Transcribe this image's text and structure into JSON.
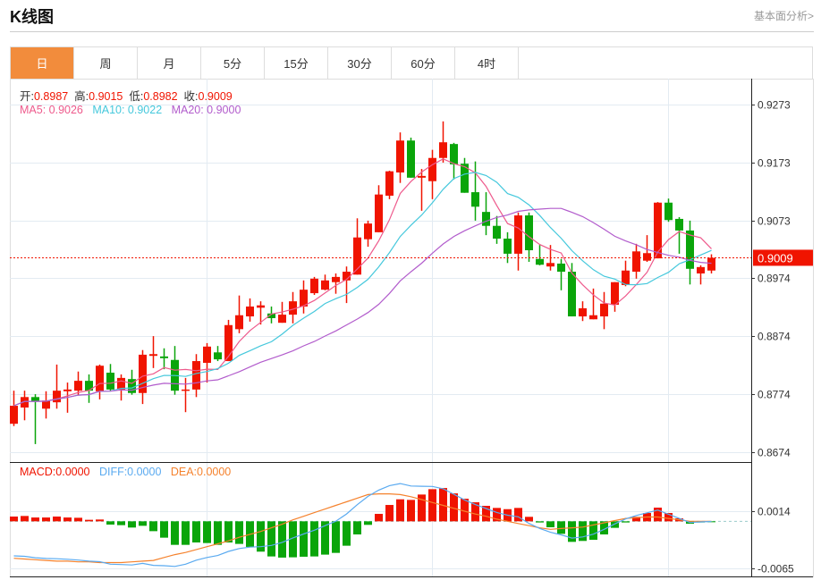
{
  "header": {
    "title": "K线图",
    "link": "基本面分析>"
  },
  "tabs": [
    {
      "label": "日",
      "active": true
    },
    {
      "label": "周"
    },
    {
      "label": "月"
    },
    {
      "label": "5分"
    },
    {
      "label": "15分"
    },
    {
      "label": "30分"
    },
    {
      "label": "60分"
    },
    {
      "label": "4时"
    }
  ],
  "info": {
    "open_label": "开:",
    "open": "0.8987",
    "high_label": "高:",
    "high": "0.9015",
    "low_label": "低:",
    "low": "0.8982",
    "close_label": "收:",
    "close": "0.9009",
    "ma5": "MA5: 0.9026",
    "ma10": "MA10: 0.9022",
    "ma20": "MA20: 0.9000"
  },
  "macd_info": {
    "macd": "MACD:0.0000",
    "diff": "DIFF:0.0000",
    "dea": "DEA:0.0000"
  },
  "colors": {
    "up": "#f01400",
    "down": "#0aa50a",
    "accent": "#f28c3c",
    "ma5": "#ee5a8c",
    "ma10": "#45c8dc",
    "ma20": "#b25ccc",
    "diff": "#5aaaf0",
    "dea": "#f5822d"
  },
  "chart_data": {
    "type": "candlestick",
    "y_ticks": [
      "0.9273",
      "0.9173",
      "0.9073",
      "0.8974",
      "0.8874",
      "0.8774",
      "0.8674"
    ],
    "ylim": [
      0.8674,
      0.9273
    ],
    "last_price": "0.9009",
    "macd_ticks": [
      "0.0014",
      "-0.0065"
    ],
    "macd_ylim": [
      -0.0065,
      0.0014
    ],
    "ohlc": [
      [
        0.8723,
        0.878,
        0.8719,
        0.8754
      ],
      [
        0.8751,
        0.878,
        0.8729,
        0.8769
      ],
      [
        0.8769,
        0.8774,
        0.8688,
        0.8762
      ],
      [
        0.8749,
        0.8779,
        0.8732,
        0.8763
      ],
      [
        0.876,
        0.8825,
        0.8749,
        0.878
      ],
      [
        0.8779,
        0.8794,
        0.8742,
        0.8782
      ],
      [
        0.878,
        0.8813,
        0.8773,
        0.8797
      ],
      [
        0.8797,
        0.8808,
        0.8759,
        0.878
      ],
      [
        0.8779,
        0.8825,
        0.8765,
        0.8823
      ],
      [
        0.8811,
        0.8826,
        0.8779,
        0.8782
      ],
      [
        0.8782,
        0.8808,
        0.8763,
        0.8802
      ],
      [
        0.88,
        0.8816,
        0.8773,
        0.8776
      ],
      [
        0.8776,
        0.885,
        0.8757,
        0.8842
      ],
      [
        0.884,
        0.8874,
        0.8819,
        0.8843
      ],
      [
        0.8839,
        0.8853,
        0.8817,
        0.8836
      ],
      [
        0.8833,
        0.8857,
        0.8773,
        0.878
      ],
      [
        0.878,
        0.8802,
        0.8743,
        0.8782
      ],
      [
        0.8782,
        0.8843,
        0.8769,
        0.8831
      ],
      [
        0.8828,
        0.8862,
        0.8794,
        0.8856
      ],
      [
        0.8846,
        0.8857,
        0.8831,
        0.8834
      ],
      [
        0.8831,
        0.8902,
        0.8831,
        0.8893
      ],
      [
        0.8886,
        0.8944,
        0.8879,
        0.891
      ],
      [
        0.8908,
        0.8939,
        0.8899,
        0.8925
      ],
      [
        0.8923,
        0.8934,
        0.8894,
        0.8927
      ],
      [
        0.8913,
        0.8925,
        0.8896,
        0.8905
      ],
      [
        0.8897,
        0.8933,
        0.8897,
        0.8911
      ],
      [
        0.8911,
        0.895,
        0.8896,
        0.8934
      ],
      [
        0.8925,
        0.897,
        0.8913,
        0.8954
      ],
      [
        0.8948,
        0.8976,
        0.8945,
        0.8973
      ],
      [
        0.8954,
        0.898,
        0.8953,
        0.897
      ],
      [
        0.8967,
        0.8982,
        0.8947,
        0.8976
      ],
      [
        0.897,
        0.8994,
        0.8931,
        0.8985
      ],
      [
        0.898,
        0.9077,
        0.898,
        0.9044
      ],
      [
        0.9041,
        0.9073,
        0.9028,
        0.9068
      ],
      [
        0.9053,
        0.9134,
        0.9053,
        0.9118
      ],
      [
        0.9116,
        0.9159,
        0.911,
        0.9158
      ],
      [
        0.9156,
        0.9225,
        0.9138,
        0.9211
      ],
      [
        0.9211,
        0.9216,
        0.9147,
        0.9147
      ],
      [
        0.9147,
        0.9162,
        0.909,
        0.915
      ],
      [
        0.9141,
        0.9195,
        0.911,
        0.9181
      ],
      [
        0.9181,
        0.9244,
        0.9173,
        0.9208
      ],
      [
        0.9205,
        0.9207,
        0.9144,
        0.917
      ],
      [
        0.9171,
        0.9181,
        0.9121,
        0.9121
      ],
      [
        0.9122,
        0.9175,
        0.9073,
        0.9097
      ],
      [
        0.9088,
        0.9122,
        0.9048,
        0.9064
      ],
      [
        0.9064,
        0.9081,
        0.9033,
        0.9042
      ],
      [
        0.9042,
        0.9053,
        0.9,
        0.9016
      ],
      [
        0.9016,
        0.9087,
        0.8987,
        0.9082
      ],
      [
        0.9082,
        0.9087,
        0.9002,
        0.9022
      ],
      [
        0.9007,
        0.9031,
        0.8996,
        0.8997
      ],
      [
        0.8994,
        0.9031,
        0.8987,
        0.9
      ],
      [
        0.8999,
        0.9007,
        0.8953,
        0.8985
      ],
      [
        0.8985,
        0.9,
        0.8908,
        0.8908
      ],
      [
        0.8908,
        0.8934,
        0.89,
        0.8922
      ],
      [
        0.8903,
        0.8956,
        0.8903,
        0.891
      ],
      [
        0.8908,
        0.895,
        0.8886,
        0.893
      ],
      [
        0.8928,
        0.8967,
        0.8916,
        0.8967
      ],
      [
        0.8962,
        0.9004,
        0.896,
        0.8987
      ],
      [
        0.8985,
        0.9033,
        0.8973,
        0.902
      ],
      [
        0.9004,
        0.9048,
        0.9002,
        0.9017
      ],
      [
        0.9008,
        0.9105,
        0.9008,
        0.9104
      ],
      [
        0.9104,
        0.9111,
        0.9071,
        0.9074
      ],
      [
        0.9076,
        0.9079,
        0.9016,
        0.9056
      ],
      [
        0.9056,
        0.9073,
        0.8963,
        0.899
      ],
      [
        0.8982,
        0.8996,
        0.8963,
        0.8993
      ],
      [
        0.8987,
        0.9015,
        0.8982,
        0.9009
      ]
    ],
    "macd_hist": [
      0.00066,
      0.00074,
      0.00053,
      0.00053,
      0.00066,
      0.00053,
      0.00049,
      0.00021,
      0.00025,
      -0.00045,
      -0.00053,
      -0.00086,
      -0.00062,
      -0.00136,
      -0.00226,
      -0.00325,
      -0.00325,
      -0.00292,
      -0.003,
      -0.00325,
      -0.00292,
      -0.00312,
      -0.00353,
      -0.00419,
      -0.00485,
      -0.00501,
      -0.00497,
      -0.00489,
      -0.00485,
      -0.0046,
      -0.00436,
      -0.00337,
      -0.00181,
      -0.00049,
      0.00103,
      0.00226,
      0.00304,
      0.00296,
      0.0037,
      0.00444,
      0.0046,
      0.00386,
      0.00312,
      0.00263,
      0.00214,
      0.00185,
      0.00168,
      0.00185,
      0.00062,
      -0.00016,
      -0.00082,
      -0.00173,
      -0.00284,
      -0.00271,
      -0.00255,
      -0.00181,
      -0.0009,
      -0.00016,
      0.00062,
      0.00115,
      0.00189,
      0.00115,
      0.00041,
      -0.00033,
      -0.00016,
      -4e-05
    ],
    "dea": [
      -0.0051,
      -0.0052,
      -0.0053,
      -0.0054,
      -0.0055,
      -0.0055,
      -0.0056,
      -0.0056,
      -0.0057,
      -0.0057,
      -0.0057,
      -0.0056,
      -0.0055,
      -0.0054,
      -0.005,
      -0.0046,
      -0.0043,
      -0.0039,
      -0.0035,
      -0.0031,
      -0.0027,
      -0.0022,
      -0.0018,
      -0.0014,
      -0.0009,
      -0.0004,
      0.0002,
      0.0007,
      0.0012,
      0.0017,
      0.0022,
      0.0027,
      0.0032,
      0.0037,
      0.0038,
      0.0038,
      0.0037,
      0.0034,
      0.003,
      0.0026,
      0.0022,
      0.0018,
      0.0014,
      0.001,
      0.0007,
      0.0003,
      0.0,
      -0.0003,
      -0.0006,
      -0.0009,
      -0.0011,
      -0.001,
      -0.0009,
      -0.0008,
      -0.0005,
      -0.0002,
      0.0001,
      0.0004,
      0.0005,
      0.0006,
      0.0006,
      0.0004,
      0.0002,
      0.0,
      0.0,
      0.0
    ]
  }
}
